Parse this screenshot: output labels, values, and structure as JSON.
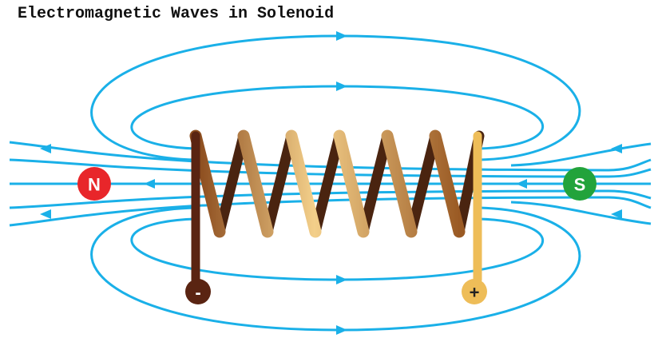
{
  "title": "Electromagnetic Waves in Solenoid",
  "poles": {
    "north": "N",
    "south": "S"
  },
  "terminals": {
    "negative": "-",
    "positive": "+"
  }
}
